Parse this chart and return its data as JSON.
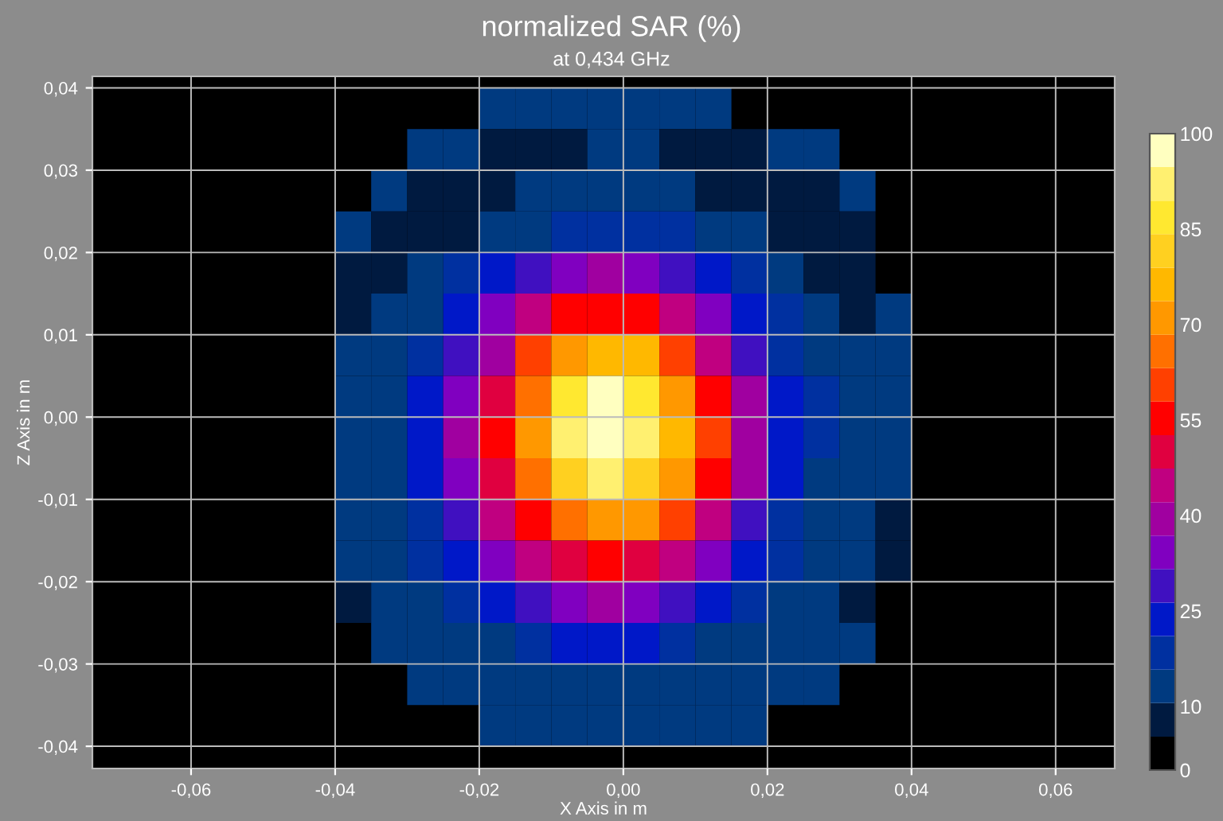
{
  "chart_data": {
    "type": "heatmap",
    "title": "normalized SAR (%)",
    "subtitle": "at 0,434 GHz",
    "xlabel": "X Axis in m",
    "ylabel": "Z Axis in m",
    "x": [
      -0.0375,
      -0.0325,
      -0.0275,
      -0.0225,
      -0.0175,
      -0.0125,
      -0.0075,
      -0.0025,
      0.0025,
      0.0075,
      0.0125,
      0.0175,
      0.0225,
      0.0275,
      0.0325,
      0.0375
    ],
    "y": [
      0.0375,
      0.0325,
      0.0275,
      0.0225,
      0.0175,
      0.0125,
      0.0075,
      0.0025,
      -0.0025,
      -0.0075,
      -0.0125,
      -0.0175,
      -0.0225,
      -0.0275,
      -0.0325,
      -0.0375
    ],
    "cells": [
      [
        null,
        null,
        null,
        null,
        11,
        11,
        12,
        12,
        12,
        11,
        11,
        null,
        null,
        null,
        null,
        null
      ],
      [
        null,
        null,
        11,
        11,
        7,
        7,
        7,
        12,
        11,
        7,
        7,
        7,
        11,
        11,
        null,
        null
      ],
      [
        null,
        11,
        7,
        7,
        7,
        11,
        12,
        14,
        12,
        11,
        7,
        7,
        7,
        7,
        11,
        null
      ],
      [
        11,
        7,
        7,
        7,
        12,
        14,
        17,
        20,
        18,
        17,
        12,
        11,
        7,
        7,
        7,
        null
      ],
      [
        7,
        7,
        13,
        17,
        24,
        30,
        35,
        38,
        36,
        31,
        25,
        18,
        13,
        7,
        7,
        null
      ],
      [
        7,
        12,
        15,
        22,
        33,
        46,
        55,
        57,
        54,
        47,
        34,
        23,
        16,
        12,
        7,
        11
      ],
      [
        12,
        12,
        17,
        27,
        42,
        58,
        70,
        78,
        74,
        60,
        44,
        29,
        18,
        12,
        12,
        11
      ],
      [
        12,
        15,
        22,
        36,
        52,
        68,
        85,
        95,
        88,
        72,
        54,
        38,
        24,
        16,
        12,
        11
      ],
      [
        12,
        15,
        23,
        37,
        55,
        72,
        90,
        100,
        93,
        77,
        58,
        40,
        25,
        16,
        12,
        11
      ],
      [
        12,
        15,
        22,
        35,
        51,
        66,
        82,
        90,
        84,
        70,
        55,
        37,
        24,
        15,
        12,
        11
      ],
      [
        12,
        15,
        20,
        28,
        43,
        57,
        66,
        72,
        69,
        59,
        43,
        30,
        20,
        15,
        12,
        10
      ],
      [
        12,
        14,
        17,
        23,
        32,
        44,
        51,
        55,
        52,
        44,
        33,
        24,
        17,
        14,
        12,
        10
      ],
      [
        10,
        12,
        14,
        17,
        22,
        28,
        35,
        37,
        35,
        29,
        23,
        17,
        14,
        12,
        10,
        null
      ],
      [
        null,
        12,
        12,
        13,
        15,
        18,
        22,
        23,
        22,
        19,
        15,
        13,
        12,
        12,
        12,
        null
      ],
      [
        null,
        null,
        13,
        13,
        11,
        11,
        11,
        11,
        11,
        11,
        11,
        11,
        13,
        13,
        null,
        null
      ],
      [
        null,
        null,
        null,
        null,
        12,
        12,
        12,
        12,
        12,
        12,
        12,
        12,
        null,
        null,
        null,
        null
      ]
    ],
    "colors": [
      "#000000",
      "#001a40",
      "#003a80",
      "#0030a0",
      "#0018c8",
      "#4010c0",
      "#8000c0",
      "#a000a0",
      "#c00080",
      "#e00040",
      "#ff0000",
      "#ff4000",
      "#ff7000",
      "#ff9800",
      "#ffb800",
      "#ffd020",
      "#ffe830",
      "#fff070",
      "#ffffc0"
    ],
    "clim": [
      0,
      100
    ],
    "cticks": [
      0,
      10,
      25,
      40,
      55,
      70,
      85,
      100
    ],
    "xlim": [
      -0.0737,
      0.0682
    ],
    "ylim": [
      -0.0427,
      0.0414
    ],
    "xticks": [
      {
        "value": -0.06,
        "label": "-0,06"
      },
      {
        "value": -0.04,
        "label": "-0,04"
      },
      {
        "value": -0.02,
        "label": "-0,02"
      },
      {
        "value": 0,
        "label": "0,00"
      },
      {
        "value": 0.02,
        "label": "0,02"
      },
      {
        "value": 0.04,
        "label": "0,04"
      },
      {
        "value": 0.06,
        "label": "0,06"
      }
    ],
    "yticks": [
      {
        "value": -0.04,
        "label": "-0,04"
      },
      {
        "value": -0.03,
        "label": "-0,03"
      },
      {
        "value": -0.02,
        "label": "-0,02"
      },
      {
        "value": -0.01,
        "label": "-0,01"
      },
      {
        "value": 0,
        "label": "0,00"
      },
      {
        "value": 0.01,
        "label": "0,01"
      },
      {
        "value": 0.02,
        "label": "0,02"
      },
      {
        "value": 0.03,
        "label": "0,03"
      },
      {
        "value": 0.04,
        "label": "0,04"
      }
    ],
    "grid": true
  }
}
